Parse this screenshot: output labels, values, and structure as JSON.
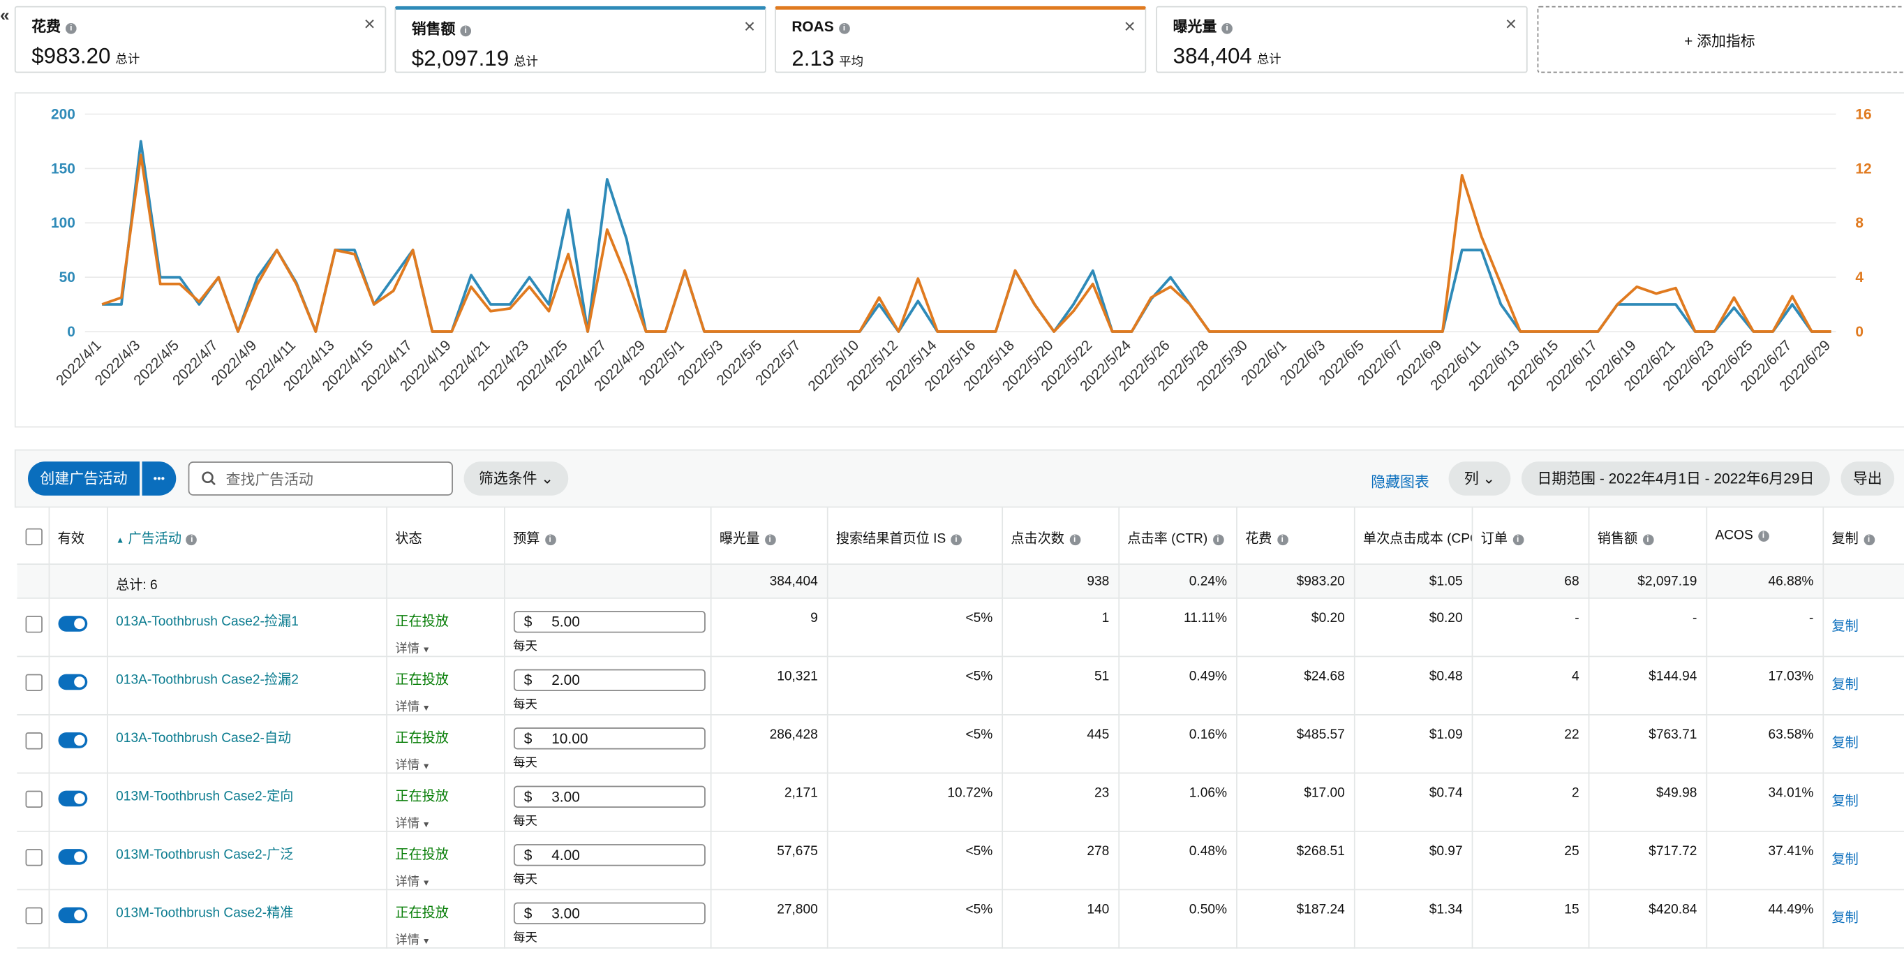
{
  "nav": {
    "collapse": "«"
  },
  "metrics": [
    {
      "label": "花费",
      "value": "$983.20",
      "note": "总计"
    },
    {
      "label": "销售额",
      "value": "$2,097.19",
      "note": "总计"
    },
    {
      "label": "ROAS",
      "value": "2.13",
      "note": "平均"
    },
    {
      "label": "曝光量",
      "value": "384,404",
      "note": "总计"
    }
  ],
  "add_metric": "+ 添加指标",
  "chart_data": {
    "type": "line",
    "categories": [
      "2022/4/1",
      null,
      "2022/4/3",
      null,
      "2022/4/5",
      null,
      "2022/4/7",
      null,
      "2022/4/9",
      null,
      "2022/4/11",
      null,
      "2022/4/13",
      null,
      "2022/4/15",
      null,
      "2022/4/17",
      null,
      "2022/4/19",
      null,
      "2022/4/21",
      null,
      "2022/4/23",
      null,
      "2022/4/25",
      null,
      "2022/4/27",
      null,
      "2022/4/29",
      null,
      "2022/5/1",
      null,
      "2022/5/3",
      null,
      "2022/5/5",
      null,
      "2022/5/7",
      null,
      null,
      "2022/5/10",
      null,
      "2022/5/12",
      null,
      "2022/5/14",
      null,
      "2022/5/16",
      null,
      "2022/5/18",
      null,
      "2022/5/20",
      null,
      "2022/5/22",
      null,
      "2022/5/24",
      null,
      "2022/5/26",
      null,
      "2022/5/28",
      null,
      "2022/5/30",
      null,
      "2022/6/1",
      null,
      "2022/6/3",
      null,
      "2022/6/5",
      null,
      "2022/6/7",
      null,
      "2022/6/9",
      null,
      "2022/6/11",
      null,
      "2022/6/13",
      null,
      "2022/6/15",
      null,
      "2022/6/17",
      null,
      "2022/6/19",
      null,
      "2022/6/21",
      null,
      "2022/6/23",
      null,
      "2022/6/25",
      null,
      "2022/6/27",
      null,
      "2022/6/29"
    ],
    "series": [
      {
        "color": "#2e8ab8",
        "axis": "y",
        "values": [
          25,
          25,
          175,
          50,
          50,
          25,
          50,
          0,
          50,
          75,
          45,
          0,
          75,
          75,
          25,
          50,
          75,
          0,
          0,
          52,
          25,
          25,
          50,
          25,
          112,
          0,
          140,
          85,
          0,
          0,
          56,
          0,
          0,
          0,
          0,
          0,
          0,
          0,
          0,
          0,
          25,
          0,
          28,
          0,
          0,
          0,
          0,
          56,
          25,
          0,
          25,
          56,
          0,
          0,
          30,
          50,
          25,
          0,
          0,
          0,
          0,
          0,
          0,
          0,
          0,
          0,
          0,
          0,
          0,
          0,
          75,
          75,
          25,
          0,
          0,
          0,
          0,
          0,
          25,
          25,
          25,
          25,
          0,
          0,
          22,
          0,
          0,
          25,
          0,
          0
        ]
      },
      {
        "color": "#e07a1f",
        "axis": "y2",
        "values": [
          2,
          2.5,
          13,
          3.5,
          3.5,
          2.2,
          4,
          0,
          3.5,
          6,
          3.5,
          0,
          6,
          5.7,
          2,
          3,
          6,
          0,
          0,
          3.3,
          1.5,
          1.7,
          3.3,
          1.5,
          5.7,
          0,
          7.5,
          4,
          0,
          0,
          4.5,
          0,
          0,
          0,
          0,
          0,
          0,
          0,
          0,
          0,
          2.5,
          0,
          3.9,
          0,
          0,
          0,
          0,
          4.5,
          2,
          0,
          1.5,
          3.5,
          0,
          0,
          2.5,
          3.3,
          2,
          0,
          0,
          0,
          0,
          0,
          0,
          0,
          0,
          0,
          0,
          0,
          0,
          0,
          11.5,
          7,
          3.5,
          0,
          0,
          0,
          0,
          0,
          2,
          3.3,
          2.8,
          3.2,
          0,
          0,
          2.5,
          0,
          0,
          2.6,
          0,
          0
        ]
      }
    ],
    "ylim": [
      0,
      200
    ],
    "yticks": [
      0,
      50,
      100,
      150,
      200
    ],
    "y2lim": [
      0,
      16
    ],
    "y2ticks": [
      0,
      4,
      8,
      12,
      16
    ],
    "grid": true
  },
  "toolbar": {
    "create": "创建广告活动",
    "more": "•••",
    "search_placeholder": "查找广告活动",
    "filter": "筛选条件",
    "hide_chart": "隐藏图表",
    "columns": "列",
    "date_range": "日期范围 - 2022年4月1日 - 2022年6月29日",
    "export": "导出"
  },
  "table": {
    "columns": [
      "有效",
      "广告活动",
      "状态",
      "预算",
      "曝光量",
      "搜索结果首页位 IS",
      "点击次数",
      "点击率 (CTR)",
      "花费",
      "单次点击成本 (CPC",
      "订单",
      "销售额",
      "ACOS",
      "复制"
    ],
    "total": {
      "label": "总计: 6",
      "impressions": "384,404",
      "clicks": "938",
      "ctr": "0.24%",
      "spend": "$983.20",
      "cpc": "$1.05",
      "orders": "68",
      "sales": "$2,097.19",
      "acos": "46.88%"
    },
    "rows": [
      {
        "name": "013A-Toothbrush Case2-捡漏1",
        "status": "正在投放",
        "details": "详情",
        "currency": "$",
        "budget": "5.00",
        "period": "每天",
        "metrics": [
          "9",
          "<5%",
          "1",
          "11.11%",
          "$0.20",
          "$0.20",
          "-",
          "-",
          "-"
        ],
        "copy": "复制"
      },
      {
        "name": "013A-Toothbrush Case2-捡漏2",
        "status": "正在投放",
        "details": "详情",
        "currency": "$",
        "budget": "2.00",
        "period": "每天",
        "metrics": [
          "10,321",
          "<5%",
          "51",
          "0.49%",
          "$24.68",
          "$0.48",
          "4",
          "$144.94",
          "17.03%"
        ],
        "copy": "复制"
      },
      {
        "name": "013A-Toothbrush Case2-自动",
        "status": "正在投放",
        "details": "详情",
        "currency": "$",
        "budget": "10.00",
        "period": "每天",
        "metrics": [
          "286,428",
          "<5%",
          "445",
          "0.16%",
          "$485.57",
          "$1.09",
          "22",
          "$763.71",
          "63.58%"
        ],
        "copy": "复制"
      },
      {
        "name": "013M-Toothbrush Case2-定向",
        "status": "正在投放",
        "details": "详情",
        "currency": "$",
        "budget": "3.00",
        "period": "每天",
        "metrics": [
          "2,171",
          "10.72%",
          "23",
          "1.06%",
          "$17.00",
          "$0.74",
          "2",
          "$49.98",
          "34.01%"
        ],
        "copy": "复制"
      },
      {
        "name": "013M-Toothbrush Case2-广泛",
        "status": "正在投放",
        "details": "详情",
        "currency": "$",
        "budget": "4.00",
        "period": "每天",
        "metrics": [
          "57,675",
          "<5%",
          "278",
          "0.48%",
          "$268.51",
          "$0.97",
          "25",
          "$717.72",
          "37.41%"
        ],
        "copy": "复制"
      },
      {
        "name": "013M-Toothbrush Case2-精准",
        "status": "正在投放",
        "details": "详情",
        "currency": "$",
        "budget": "3.00",
        "period": "每天",
        "metrics": [
          "27,800",
          "<5%",
          "140",
          "0.50%",
          "$187.24",
          "$1.34",
          "15",
          "$420.84",
          "44.49%"
        ],
        "copy": "复制"
      }
    ]
  }
}
